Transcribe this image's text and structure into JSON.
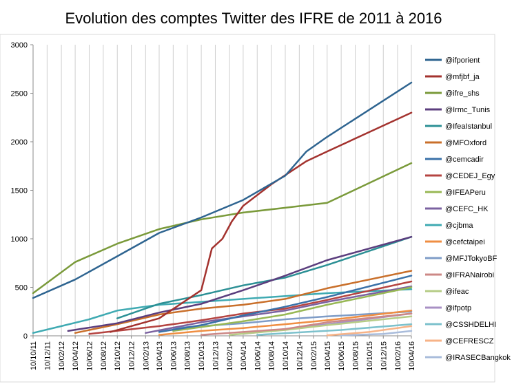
{
  "chart_data": {
    "type": "line",
    "title": "Evolution des comptes Twitter des IFRE de 2011 à 2016",
    "xlabel": "",
    "ylabel": "",
    "ylim": [
      0,
      3000
    ],
    "yticks": [
      0,
      500,
      1000,
      1500,
      2000,
      2500,
      3000
    ],
    "xlim": [
      "2011-10-10",
      "2016-04-10"
    ],
    "xticks": [
      "10/10/11",
      "10/12/11",
      "10/02/12",
      "10/04/12",
      "10/06/12",
      "10/08/12",
      "10/10/12",
      "10/12/12",
      "10/02/13",
      "10/04/13",
      "10/06/13",
      "10/08/13",
      "10/10/13",
      "10/12/13",
      "10/02/14",
      "10/04/14",
      "10/06/14",
      "10/08/14",
      "10/10/14",
      "10/12/14",
      "10/02/15",
      "10/04/15",
      "10/06/15",
      "10/08/15",
      "10/10/15",
      "10/12/15",
      "10/02/16",
      "10/04/16"
    ],
    "grid": "vertical",
    "legend": "right",
    "series": [
      {
        "name": "@ifporient",
        "color": "#2E6490",
        "x": [
          "2011-10-10",
          "2012-04-10",
          "2012-10-10",
          "2013-04-10",
          "2013-10-10",
          "2014-04-10",
          "2014-10-10",
          "2015-01-10",
          "2015-04-10",
          "2016-04-10"
        ],
        "y": [
          390,
          580,
          820,
          1060,
          1220,
          1400,
          1650,
          1900,
          2050,
          2610
        ]
      },
      {
        "name": "@mfjbf_ja",
        "color": "#A3322E",
        "x": [
          "2012-09-10",
          "2013-04-10",
          "2013-10-10",
          "2013-11-25",
          "2014-01-10",
          "2014-02-20",
          "2014-04-10",
          "2014-08-10",
          "2015-01-10",
          "2015-04-10",
          "2016-04-10"
        ],
        "y": [
          40,
          180,
          470,
          900,
          1000,
          1180,
          1340,
          1560,
          1800,
          1900,
          2300
        ]
      },
      {
        "name": "@ifre_shs",
        "color": "#7A9A3A",
        "x": [
          "2011-10-10",
          "2012-04-10",
          "2012-10-10",
          "2013-04-10",
          "2013-10-10",
          "2014-04-10",
          "2014-10-10",
          "2015-04-10",
          "2016-04-10"
        ],
        "y": [
          440,
          760,
          950,
          1100,
          1200,
          1270,
          1320,
          1370,
          1780
        ]
      },
      {
        "name": "@Irmc_Tunis",
        "color": "#5B3E7E",
        "x": [
          "2012-03-10",
          "2012-10-10",
          "2013-04-10",
          "2013-10-10",
          "2014-04-10",
          "2014-10-10",
          "2015-04-10",
          "2016-04-10"
        ],
        "y": [
          50,
          130,
          240,
          330,
          470,
          620,
          780,
          1020
        ]
      },
      {
        "name": "@IfeaIstanbul",
        "color": "#2C9095",
        "x": [
          "2012-10-10",
          "2013-04-10",
          "2013-10-10",
          "2014-04-10",
          "2014-10-10",
          "2015-04-10",
          "2016-04-10"
        ],
        "y": [
          180,
          330,
          420,
          520,
          600,
          730,
          1020
        ]
      },
      {
        "name": "@MFOxford",
        "color": "#C96F2A",
        "x": [
          "2012-04-10",
          "2012-10-10",
          "2013-04-10",
          "2013-10-10",
          "2014-04-10",
          "2014-10-10",
          "2015-04-10",
          "2016-04-10"
        ],
        "y": [
          30,
          120,
          220,
          280,
          320,
          380,
          490,
          670
        ]
      },
      {
        "name": "@cemcadir",
        "color": "#3A71A8",
        "x": [
          "2013-04-10",
          "2013-10-10",
          "2014-04-10",
          "2014-10-10",
          "2015-04-10",
          "2016-04-10"
        ],
        "y": [
          40,
          110,
          210,
          300,
          400,
          620
        ]
      },
      {
        "name": "@CEDEJ_Egy",
        "color": "#B54441",
        "x": [
          "2012-06-10",
          "2013-04-10",
          "2013-10-10",
          "2014-04-10",
          "2014-10-10",
          "2015-04-10",
          "2016-04-10"
        ],
        "y": [
          20,
          100,
          160,
          230,
          280,
          370,
          560
        ]
      },
      {
        "name": "@IFEAPeru",
        "color": "#98B855",
        "x": [
          "2013-06-10",
          "2014-04-10",
          "2014-10-10",
          "2015-04-10",
          "2016-04-10"
        ],
        "y": [
          50,
          150,
          220,
          320,
          500
        ]
      },
      {
        "name": "@CEFC_HK",
        "color": "#7B62A0",
        "x": [
          "2013-02-10",
          "2013-10-10",
          "2014-04-10",
          "2014-10-10",
          "2015-04-10",
          "2016-04-10"
        ],
        "y": [
          30,
          140,
          200,
          260,
          350,
          510
        ]
      },
      {
        "name": "@cjbma",
        "color": "#3FAAB2",
        "x": [
          "2011-10-10",
          "2012-02-10",
          "2012-06-10",
          "2012-10-10",
          "2013-04-10",
          "2013-10-10",
          "2014-04-10",
          "2014-10-10",
          "2015-04-10",
          "2016-04-10"
        ],
        "y": [
          30,
          100,
          170,
          260,
          320,
          350,
          380,
          410,
          440,
          480
        ]
      },
      {
        "name": "@cefctaipei",
        "color": "#EF8E42",
        "x": [
          "2013-04-10",
          "2013-10-10",
          "2014-04-10",
          "2014-10-10",
          "2015-04-10",
          "2016-04-10"
        ],
        "y": [
          10,
          50,
          80,
          120,
          160,
          260
        ]
      },
      {
        "name": "@MFJTokyoBF",
        "color": "#7E9CC7",
        "x": [
          "2013-06-10",
          "2014-04-10",
          "2014-10-10",
          "2015-04-10",
          "2016-04-10"
        ],
        "y": [
          80,
          130,
          170,
          200,
          250
        ]
      },
      {
        "name": "@IFRANairobi",
        "color": "#CC8886",
        "x": [
          "2013-10-10",
          "2014-04-10",
          "2014-10-10",
          "2015-04-10",
          "2016-04-10"
        ],
        "y": [
          10,
          40,
          70,
          140,
          230
        ]
      },
      {
        "name": "@ifeac",
        "color": "#B6CC86",
        "x": [
          "2014-02-10",
          "2014-10-10",
          "2015-04-10",
          "2016-04-10"
        ],
        "y": [
          10,
          60,
          110,
          200
        ]
      },
      {
        "name": "@ifpotp",
        "color": "#A890C4",
        "x": [
          "2014-04-10",
          "2014-10-10",
          "2015-04-10",
          "2016-04-10"
        ],
        "y": [
          20,
          70,
          120,
          230
        ]
      },
      {
        "name": "@CSSHDELHI",
        "color": "#7CC1CC",
        "x": [
          "2014-06-10",
          "2015-01-10",
          "2015-06-10",
          "2016-04-10"
        ],
        "y": [
          10,
          40,
          60,
          120
        ]
      },
      {
        "name": "@CEFRESCZ",
        "color": "#F7B387",
        "x": [
          "2015-04-10",
          "2015-10-10",
          "2016-04-10"
        ],
        "y": [
          5,
          40,
          100
        ]
      },
      {
        "name": "@IRASECBangkok",
        "color": "#A9BCDB",
        "x": [
          "2015-06-10",
          "2015-12-10",
          "2016-04-10"
        ],
        "y": [
          5,
          20,
          50
        ]
      }
    ]
  }
}
